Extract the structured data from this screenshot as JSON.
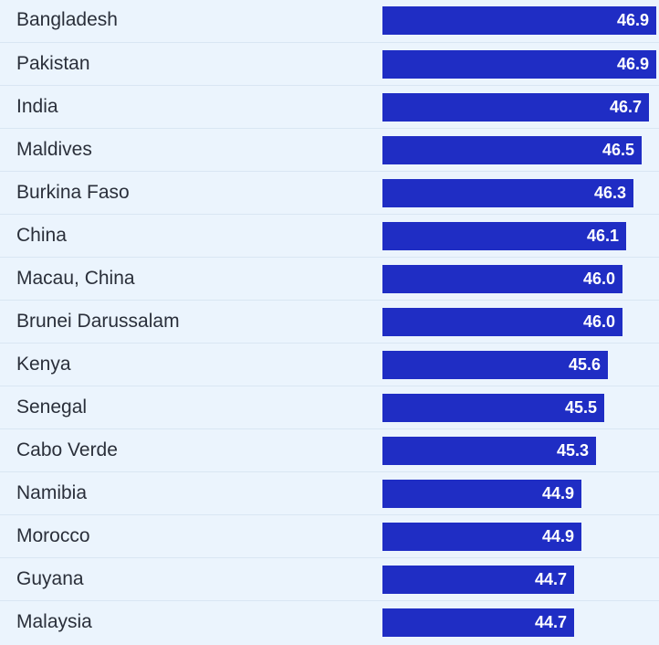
{
  "chart_data": {
    "type": "bar",
    "orientation": "horizontal",
    "categories": [
      "Bangladesh",
      "Pakistan",
      "India",
      "Maldives",
      "Burkina Faso",
      "China",
      "Macau, China",
      "Brunei Darussalam",
      "Kenya",
      "Senegal",
      "Cabo Verde",
      "Namibia",
      "Morocco",
      "Guyana",
      "Malaysia"
    ],
    "values": [
      46.9,
      46.9,
      46.7,
      46.5,
      46.3,
      46.1,
      46.0,
      46.0,
      45.6,
      45.5,
      45.3,
      44.9,
      44.9,
      44.7,
      44.7
    ],
    "value_labels": [
      "46.9",
      "46.9",
      "46.7",
      "46.5",
      "46.3",
      "46.1",
      "46.0",
      "46.0",
      "45.6",
      "45.5",
      "45.3",
      "44.9",
      "44.9",
      "44.7",
      "44.7"
    ],
    "title": "",
    "xlabel": "",
    "ylabel": "",
    "bar_color": "#1f2dc4",
    "background_color": "#ebf4fd",
    "grid": false
  }
}
